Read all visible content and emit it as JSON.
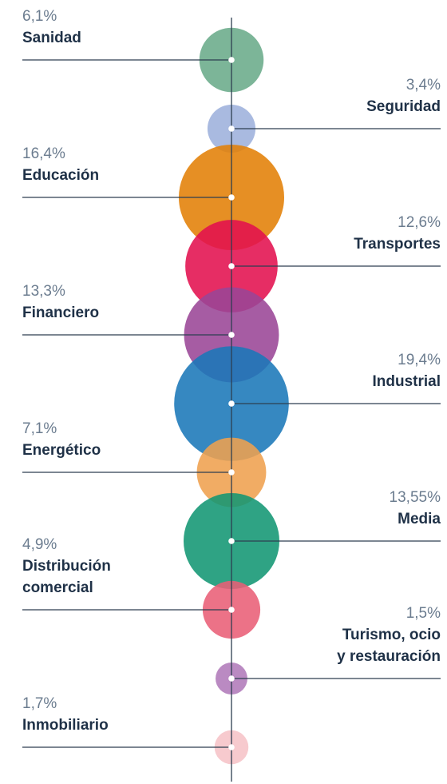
{
  "chart_data": {
    "type": "bubble",
    "categories": [
      "Sanidad",
      "Seguridad",
      "Educación",
      "Transportes",
      "Financiero",
      "Industrial",
      "Energético",
      "Media",
      "Distribución\ncomercial",
      "Turismo, ocio\ny restauración",
      "Inmobiliario"
    ],
    "values": [
      6.1,
      3.4,
      16.4,
      12.6,
      13.3,
      19.4,
      7.1,
      13.55,
      4.9,
      1.5,
      1.7
    ],
    "value_labels": [
      "6,1%",
      "3,4%",
      "16,4%",
      "12,6%",
      "13,3%",
      "19,4%",
      "7,1%",
      "13,55%",
      "4,9%",
      "1,5%",
      "1,7%"
    ],
    "colors": [
      "#6aab8a",
      "#9db0dc",
      "#e37f06",
      "#e2104f",
      "#9a4596",
      "#1a77b8",
      "#efa14f",
      "#129673",
      "#e95f76",
      "#b07ab9",
      "#f6c3c7"
    ]
  }
}
